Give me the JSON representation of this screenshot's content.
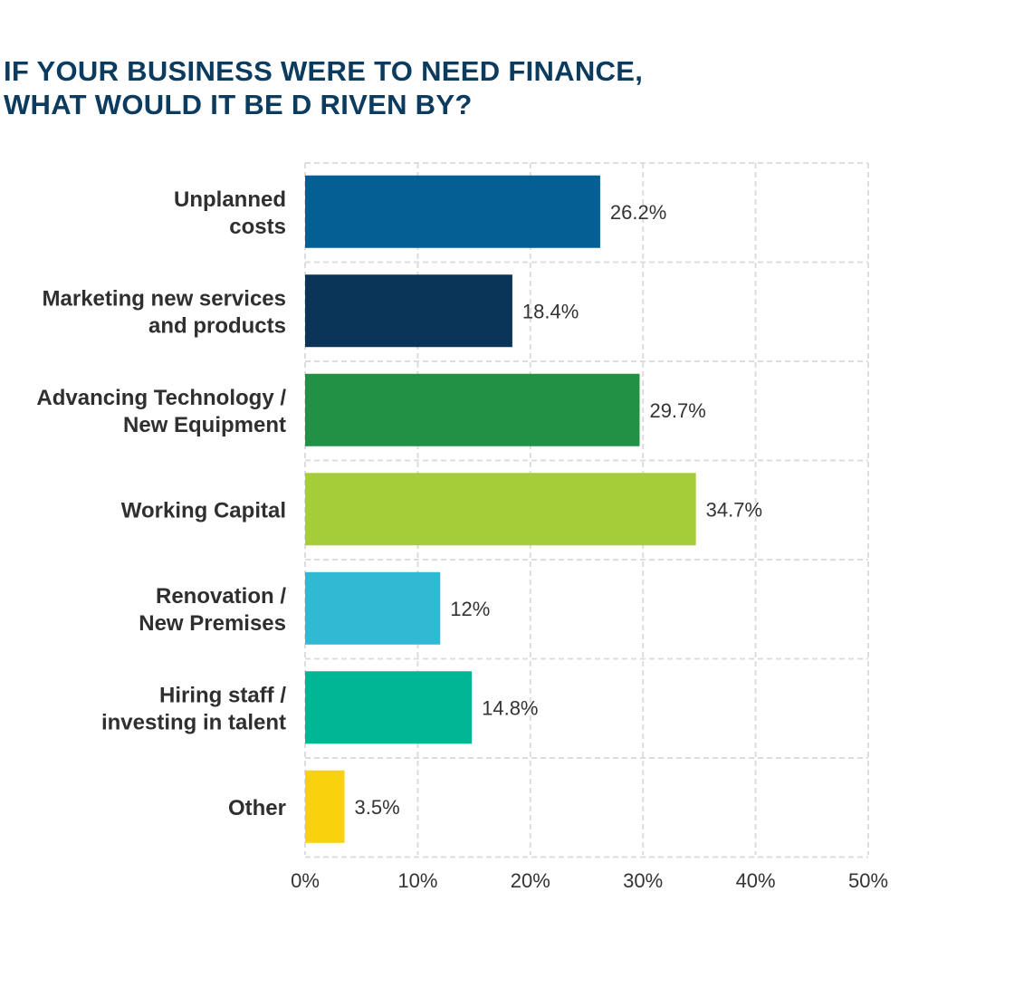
{
  "chart_data": {
    "type": "bar",
    "orientation": "horizontal",
    "title_lines": [
      "IF YOUR BUSINESS WERE TO NEED FINANCE,",
      "WHAT WOULD IT BE D RIVEN BY?"
    ],
    "xlabel": "",
    "ylabel": "",
    "xlim": [
      0,
      50
    ],
    "x_ticks": [
      0,
      10,
      20,
      30,
      40,
      50
    ],
    "tick_suffix": "%",
    "grid": true,
    "grid_style": "dashed",
    "legend": "none",
    "categories": [
      {
        "lines": [
          "Unplanned",
          "costs"
        ],
        "value": 26.2,
        "label": "26.2%",
        "color": "#045f95"
      },
      {
        "lines": [
          "Marketing new services",
          "and products"
        ],
        "value": 18.4,
        "label": "18.4%",
        "color": "#0a3458"
      },
      {
        "lines": [
          "Advancing Technology /",
          "New Equipment"
        ],
        "value": 29.7,
        "label": "29.7%",
        "color": "#239145"
      },
      {
        "lines": [
          "Working Capital"
        ],
        "value": 34.7,
        "label": "34.7%",
        "color": "#a5cd39"
      },
      {
        "lines": [
          "Renovation /",
          "New Premises"
        ],
        "value": 12,
        "label": "12%",
        "color": "#31b8d2"
      },
      {
        "lines": [
          "Hiring staff /",
          "investing in talent"
        ],
        "value": 14.8,
        "label": "14.8%",
        "color": "#00b694"
      },
      {
        "lines": [
          "Other"
        ],
        "value": 3.5,
        "label": "3.5%",
        "color": "#f9d10d"
      }
    ]
  }
}
